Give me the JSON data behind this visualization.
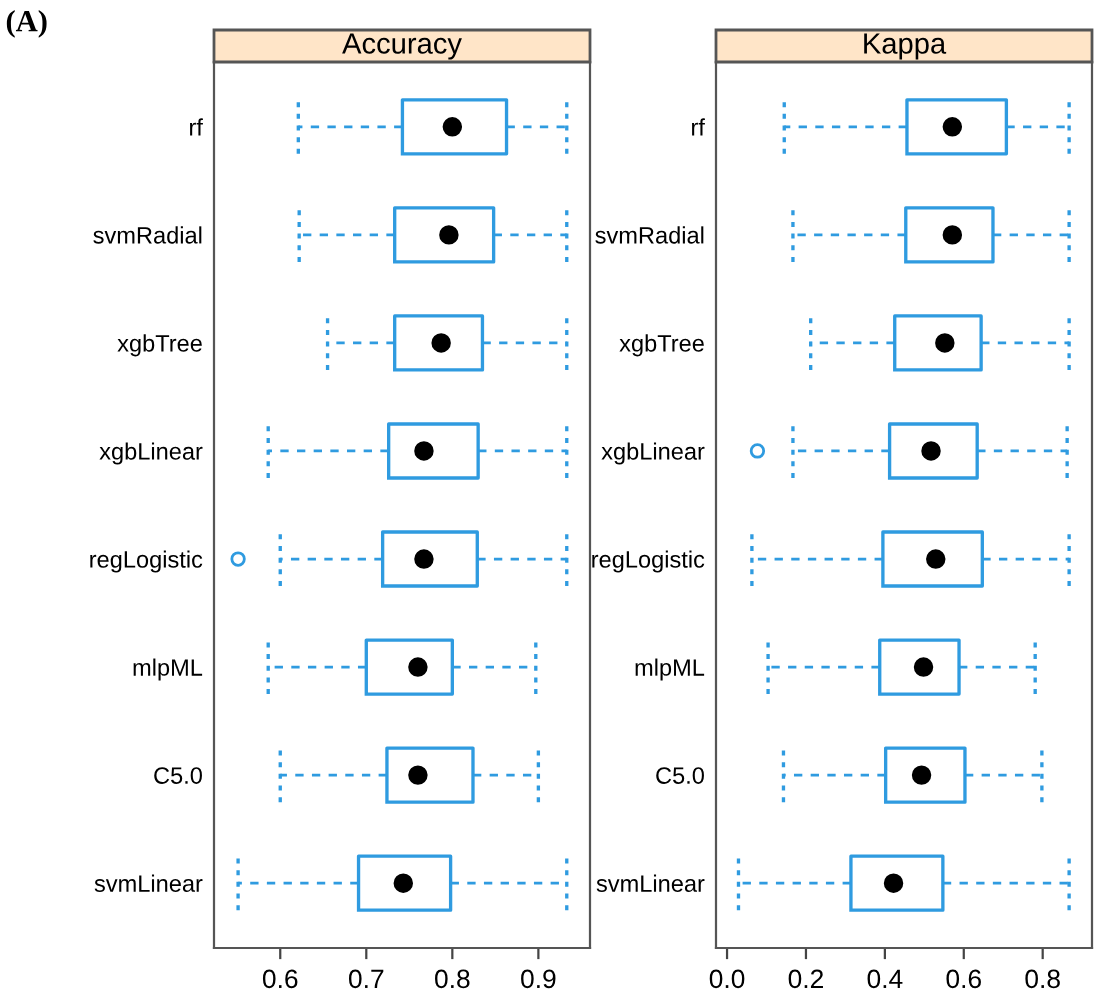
{
  "chart_data": [
    {
      "type": "box",
      "orientation": "horizontal",
      "title": "Accuracy",
      "annotations": [
        "(A)"
      ],
      "color": "#2f9be0",
      "categories": [
        "rf",
        "svmRadial",
        "xgbTree",
        "xgbLinear",
        "regLogistic",
        "mlpML",
        "C5.0",
        "svmLinear"
      ],
      "boxes": [
        {
          "low": 0.621,
          "q1": 0.742,
          "median": 0.8,
          "q3": 0.863,
          "high": 0.933
        },
        {
          "low": 0.622,
          "q1": 0.733,
          "median": 0.796,
          "q3": 0.848,
          "high": 0.933
        },
        {
          "low": 0.655,
          "q1": 0.733,
          "median": 0.787,
          "q3": 0.835,
          "high": 0.933
        },
        {
          "low": 0.586,
          "q1": 0.726,
          "median": 0.767,
          "q3": 0.83,
          "high": 0.933
        },
        {
          "low": 0.6,
          "q1": 0.719,
          "median": 0.767,
          "q3": 0.829,
          "high": 0.933,
          "outliers": [
            0.551
          ]
        },
        {
          "low": 0.586,
          "q1": 0.7,
          "median": 0.76,
          "q3": 0.8,
          "high": 0.897
        },
        {
          "low": 0.6,
          "q1": 0.724,
          "median": 0.76,
          "q3": 0.824,
          "high": 0.9
        },
        {
          "low": 0.551,
          "q1": 0.691,
          "median": 0.743,
          "q3": 0.798,
          "high": 0.933
        }
      ],
      "xlim": [
        0.523,
        0.96
      ],
      "xticks": [
        0.6,
        0.7,
        0.8,
        0.9
      ]
    },
    {
      "type": "box",
      "orientation": "horizontal",
      "title": "Kappa",
      "color": "#2f9be0",
      "categories": [
        "rf",
        "svmRadial",
        "xgbTree",
        "xgbLinear",
        "regLogistic",
        "mlpML",
        "C5.0",
        "svmLinear"
      ],
      "boxes": [
        {
          "low": 0.145,
          "q1": 0.456,
          "median": 0.571,
          "q3": 0.708,
          "high": 0.867
        },
        {
          "low": 0.167,
          "q1": 0.453,
          "median": 0.571,
          "q3": 0.674,
          "high": 0.867
        },
        {
          "low": 0.212,
          "q1": 0.425,
          "median": 0.552,
          "q3": 0.644,
          "high": 0.867
        },
        {
          "low": 0.167,
          "q1": 0.412,
          "median": 0.517,
          "q3": 0.634,
          "high": 0.862,
          "outliers": [
            0.077
          ]
        },
        {
          "low": 0.063,
          "q1": 0.395,
          "median": 0.529,
          "q3": 0.647,
          "high": 0.867
        },
        {
          "low": 0.104,
          "q1": 0.387,
          "median": 0.498,
          "q3": 0.588,
          "high": 0.781
        },
        {
          "low": 0.143,
          "q1": 0.402,
          "median": 0.493,
          "q3": 0.603,
          "high": 0.798
        },
        {
          "low": 0.029,
          "q1": 0.314,
          "median": 0.422,
          "q3": 0.547,
          "high": 0.867
        }
      ],
      "xlim": [
        -0.028,
        0.925
      ],
      "xticks": [
        {
          "value": 0,
          "label": "0.0"
        },
        0.2,
        0.4,
        0.6,
        0.8
      ]
    }
  ]
}
